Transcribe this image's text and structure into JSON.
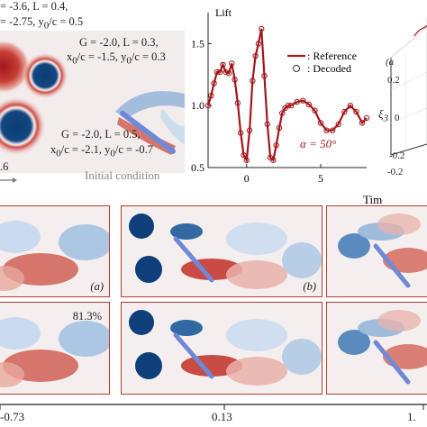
{
  "colors": {
    "red": "#a3171b",
    "blue": "#1f5d9e",
    "flow_bg": "#f3ecec",
    "frame": "#b8392f",
    "airfoil": "#6f88d8"
  },
  "initial": {
    "labels": {
      "v1a": "= -3.6, L = 0.4,",
      "v1b": "= -2.75, y",
      "v1c": "/c = 0.5",
      "v2a": "G = -2.0, L = 0.3,",
      "v2b": "x",
      "v2c": "/c = -1.5, y",
      "v2d": "/c = 0.3",
      "v3a": "G = -2.0, L = 0.5,",
      "v3b": "x",
      "v3c": "/c = -2.1, y",
      "v3d": "/c = -0.7",
      "sub0": "0",
      "tick_06": ".6",
      "caption": "Initial condition"
    }
  },
  "chart_data": {
    "type": "line",
    "ylabel": "Lift",
    "xlabel": "Time",
    "xticks": [
      0,
      5
    ],
    "yticks": [
      0.5,
      1.0,
      1.5
    ],
    "xlim": [
      -2.6,
      8.1
    ],
    "ylim": [
      0.5,
      1.75
    ],
    "legend": [
      {
        "name": ": Reference",
        "style": "line"
      },
      {
        "name": ": Decoded",
        "style": "circle"
      }
    ],
    "annotation": "α = 50°",
    "series": [
      {
        "name": "Reference",
        "x": [
          -2.6,
          -2.4,
          -2.2,
          -2.0,
          -1.8,
          -1.6,
          -1.4,
          -1.2,
          -1.0,
          -0.8,
          -0.6,
          -0.4,
          -0.2,
          0.0,
          0.2,
          0.4,
          0.6,
          0.8,
          1.0,
          1.2,
          1.4,
          1.6,
          1.8,
          2.0,
          2.2,
          2.4,
          2.6,
          2.8,
          3.0,
          3.4,
          3.8,
          4.2,
          4.6,
          5.0,
          5.4,
          5.8,
          6.2,
          6.6,
          7.0,
          7.4,
          7.8,
          8.1
        ],
        "y": [
          1.0,
          1.08,
          1.18,
          1.27,
          1.27,
          1.33,
          1.27,
          1.26,
          1.34,
          1.21,
          1.02,
          0.78,
          0.6,
          0.56,
          0.8,
          1.2,
          1.4,
          1.5,
          1.62,
          1.24,
          0.85,
          0.58,
          0.56,
          0.68,
          0.82,
          0.94,
          0.98,
          1.0,
          1.0,
          1.03,
          1.04,
          1.01,
          0.96,
          0.86,
          0.8,
          0.8,
          0.85,
          0.95,
          1.0,
          0.95,
          0.86,
          0.9
        ]
      }
    ]
  },
  "pca": {
    "axis_label": "ξ",
    "axis_sub": "3",
    "ticks": [
      "0.2",
      "0",
      "-0.2",
      "-0.2"
    ],
    "tag": "(a"
  },
  "panels": [
    {
      "tag": "(a)",
      "pct": "",
      "row": 0,
      "col": 0
    },
    {
      "tag": "(b)",
      "pct": "",
      "row": 0,
      "col": 1
    },
    {
      "tag": "",
      "pct": "",
      "row": 0,
      "col": 2
    },
    {
      "tag": "",
      "pct": "81.3%",
      "row": 1,
      "col": 0
    },
    {
      "tag": "",
      "pct": "",
      "row": 1,
      "col": 1
    },
    {
      "tag": "",
      "pct": "",
      "row": 1,
      "col": 2
    }
  ],
  "colorbar": {
    "ticks": [
      "-0.73",
      "0.13",
      "1."
    ]
  }
}
